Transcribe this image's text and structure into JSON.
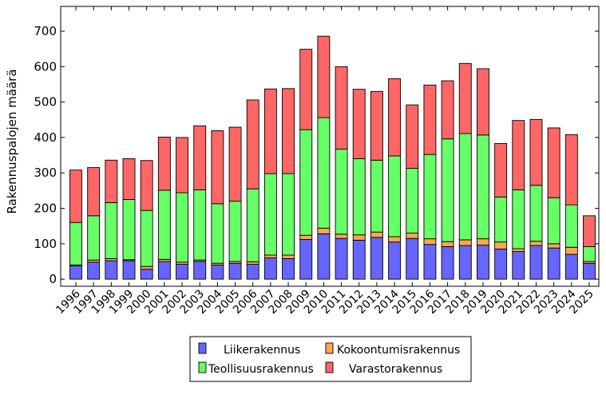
{
  "chart_data": {
    "type": "bar",
    "stacked": true,
    "title": "",
    "xlabel": "",
    "ylabel": "Rakennuspalojen määrä",
    "ylim": [
      -20,
      770
    ],
    "yticks": [
      0,
      100,
      200,
      300,
      400,
      500,
      600,
      700
    ],
    "grid": false,
    "legend_position": "bottom",
    "categories": [
      "1996",
      "1997",
      "1998",
      "1999",
      "2000",
      "2001",
      "2002",
      "2003",
      "2004",
      "2005",
      "2006",
      "2007",
      "2008",
      "2009",
      "2010",
      "2011",
      "2012",
      "2013",
      "2014",
      "2015",
      "2016",
      "2017",
      "2018",
      "2019",
      "2020",
      "2021",
      "2022",
      "2023",
      "2024",
      "2025"
    ],
    "series": [
      {
        "name": "Liikerakennus",
        "color": "#6666ff",
        "values": [
          38,
          48,
          52,
          52,
          28,
          50,
          42,
          50,
          40,
          45,
          42,
          60,
          58,
          112,
          128,
          115,
          110,
          118,
          105,
          115,
          98,
          92,
          95,
          96,
          85,
          78,
          95,
          88,
          70,
          45
        ]
      },
      {
        "name": "Kokoontumisrakennus",
        "color": "#ffa64d",
        "values": [
          2,
          6,
          6,
          3,
          8,
          6,
          6,
          4,
          5,
          5,
          7,
          8,
          10,
          12,
          16,
          12,
          15,
          15,
          15,
          15,
          16,
          14,
          16,
          18,
          20,
          8,
          12,
          12,
          20,
          5
        ]
      },
      {
        "name": "Teollisuusrakennus",
        "color": "#66ff66",
        "values": [
          120,
          125,
          158,
          170,
          158,
          195,
          196,
          198,
          168,
          170,
          206,
          230,
          230,
          298,
          312,
          240,
          215,
          203,
          228,
          183,
          238,
          290,
          300,
          293,
          127,
          166,
          158,
          130,
          120,
          42
        ]
      },
      {
        "name": "Varastorakennus",
        "color": "#ff6666",
        "values": [
          148,
          136,
          120,
          115,
          141,
          150,
          156,
          181,
          206,
          209,
          251,
          239,
          240,
          227,
          230,
          233,
          196,
          194,
          218,
          179,
          196,
          164,
          198,
          187,
          151,
          196,
          186,
          197,
          198,
          87
        ]
      }
    ]
  }
}
